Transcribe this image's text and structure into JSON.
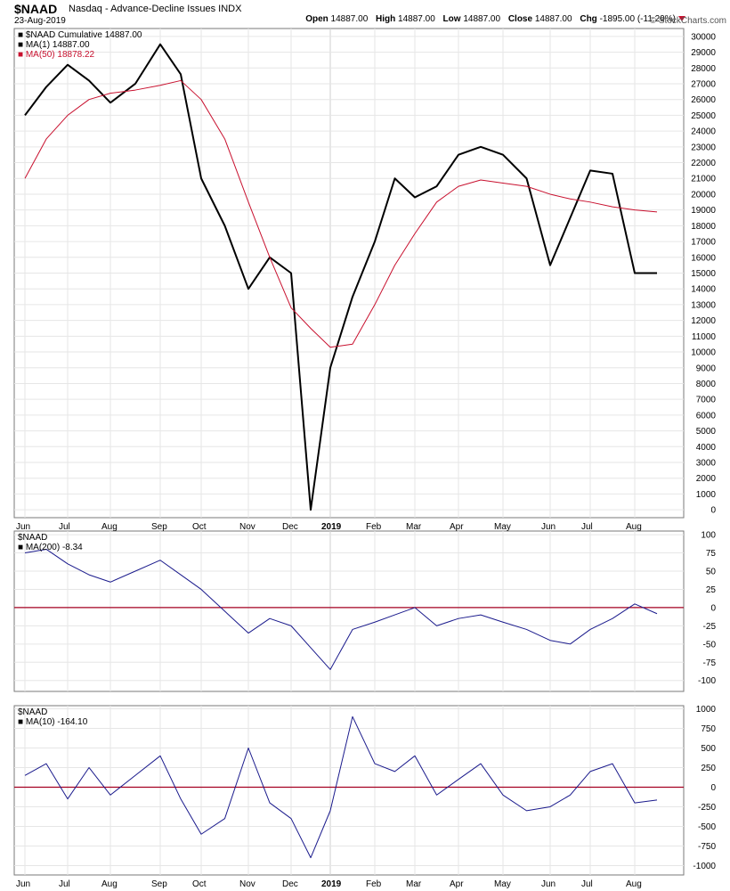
{
  "header": {
    "symbol": "$NAAD",
    "title": "Nasdaq - Advance-Decline Issues INDX",
    "date": "23-Aug-2019",
    "open_label": "Open",
    "open": "14887.00",
    "high_label": "High",
    "high": "14887.00",
    "low_label": "Low",
    "low": "14887.00",
    "close_label": "Close",
    "close": "14887.00",
    "chg_label": "Chg",
    "chg": "-1895.00 (-11.29%)",
    "brand": "© StockCharts.com"
  },
  "colors": {
    "price": "#000000",
    "ma50": "#c8102e",
    "osc": "#1a1a8c",
    "zero": "#a50021",
    "grid": "#e6e6e6",
    "frame": "#7a7a7a"
  },
  "x_axis": {
    "month_labels": [
      "Jun",
      "Jul",
      "Aug",
      "Sep",
      "Oct",
      "Nov",
      "Dec",
      "2019",
      "Feb",
      "Mar",
      "Apr",
      "May",
      "Jun",
      "Jul",
      "Aug"
    ],
    "month_positions": [
      0,
      1,
      2,
      3,
      4,
      5,
      6,
      7,
      8,
      9,
      10,
      11,
      12,
      13,
      14
    ]
  },
  "chart_data": [
    {
      "type": "line",
      "title": "$NAAD Cumulative",
      "legend": {
        "main": "$NAAD Cumulative 14887.00",
        "ma1": "MA(1) 14887.00",
        "ma50": "MA(50) 18878.22"
      },
      "x": [
        0,
        0.5,
        1,
        1.5,
        2,
        2.5,
        3,
        3.5,
        4,
        4.5,
        5,
        5.5,
        6,
        6.5,
        7,
        7.5,
        8,
        8.5,
        9,
        9.5,
        10,
        10.5,
        11,
        11.5,
        12,
        12.5,
        13,
        13.5,
        14,
        14.5
      ],
      "series": [
        {
          "name": "$NAAD Cumulative",
          "values": [
            25000,
            26800,
            28200,
            27200,
            25800,
            27000,
            29500,
            27600,
            21000,
            18000,
            14000,
            16000,
            15000,
            0,
            9000,
            13500,
            17000,
            21000,
            19800,
            20500,
            22500,
            23000,
            22500,
            21000,
            15500,
            18500,
            21500,
            21300,
            15000,
            15000
          ]
        },
        {
          "name": "MA(50)",
          "values": [
            21000,
            23500,
            25000,
            26000,
            26400,
            26600,
            26900,
            27200,
            26000,
            23500,
            19500,
            16000,
            12800,
            11500,
            10300,
            10500,
            13000,
            15500,
            17500,
            19500,
            20500,
            20900,
            20700,
            20500,
            20000,
            19700,
            19500,
            19200,
            19000,
            18878
          ]
        }
      ],
      "ylim": [
        -500,
        30500
      ],
      "yticks": [
        0,
        1000,
        2000,
        3000,
        4000,
        5000,
        6000,
        7000,
        8000,
        9000,
        10000,
        11000,
        12000,
        13000,
        14000,
        15000,
        16000,
        17000,
        18000,
        19000,
        20000,
        21000,
        22000,
        23000,
        24000,
        25000,
        26000,
        27000,
        28000,
        29000,
        30000
      ]
    },
    {
      "type": "line",
      "legend": {
        "main": "$NAAD",
        "ma": "MA(200) -8.34"
      },
      "x": [
        0,
        0.5,
        1,
        1.5,
        2,
        2.5,
        3,
        3.5,
        4,
        4.5,
        5,
        5.5,
        6,
        6.5,
        7,
        7.5,
        8,
        8.5,
        9,
        9.5,
        10,
        10.5,
        11,
        11.5,
        12,
        12.5,
        13,
        13.5,
        14,
        14.5
      ],
      "series": [
        {
          "name": "MA(200)",
          "values": [
            75,
            80,
            60,
            45,
            35,
            50,
            65,
            45,
            25,
            -5,
            -35,
            -15,
            -25,
            -55,
            -85,
            -30,
            -20,
            -10,
            0,
            -25,
            -15,
            -10,
            -20,
            -30,
            -45,
            -50,
            -30,
            -15,
            5,
            -8.34
          ]
        }
      ],
      "zero_line": 0,
      "ylim": [
        -115,
        105
      ],
      "yticks": [
        -100,
        -75,
        -50,
        -25,
        0,
        25,
        50,
        75,
        100
      ]
    },
    {
      "type": "line",
      "legend": {
        "main": "$NAAD",
        "ma": "MA(10) -164.10"
      },
      "x": [
        0,
        0.5,
        1,
        1.5,
        2,
        2.5,
        3,
        3.5,
        4,
        4.5,
        5,
        5.5,
        6,
        6.5,
        7,
        7.5,
        8,
        8.5,
        9,
        9.5,
        10,
        10.5,
        11,
        11.5,
        12,
        12.5,
        13,
        13.5,
        14,
        14.5
      ],
      "series": [
        {
          "name": "MA(10)",
          "values": [
            150,
            300,
            -150,
            250,
            -100,
            150,
            400,
            -150,
            -600,
            -400,
            500,
            -200,
            -400,
            -900,
            -300,
            900,
            300,
            200,
            400,
            -100,
            100,
            300,
            -100,
            -300,
            -250,
            -100,
            200,
            300,
            -200,
            -164.1
          ]
        }
      ],
      "zero_line": 0,
      "ylim": [
        -1120,
        1040
      ],
      "yticks": [
        -1000,
        -750,
        -500,
        -250,
        0,
        250,
        500,
        750,
        1000
      ]
    }
  ]
}
